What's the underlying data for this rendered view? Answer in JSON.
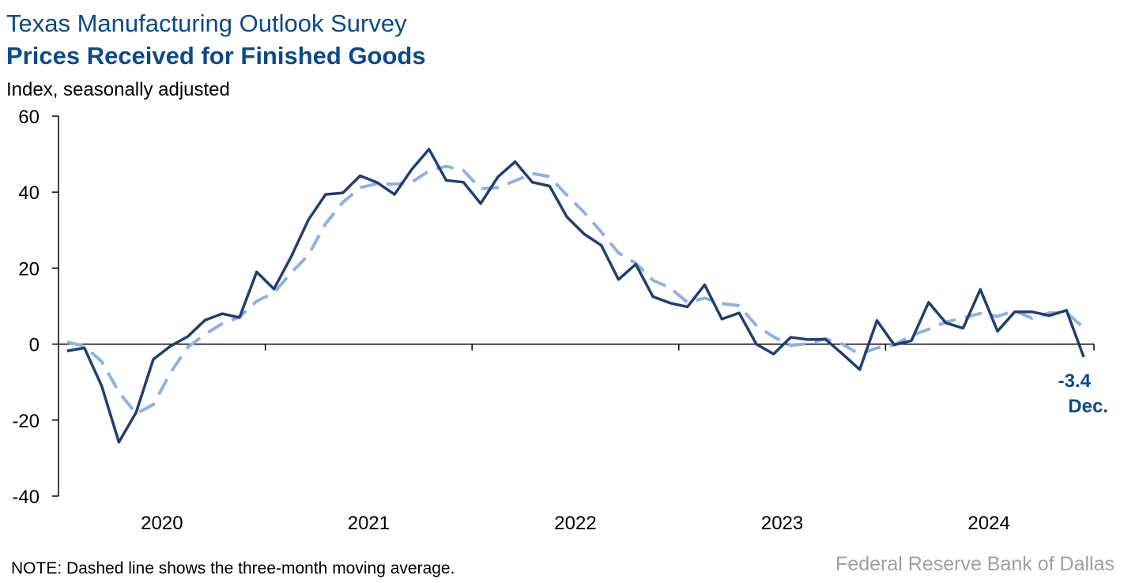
{
  "chart_data": {
    "type": "line",
    "title": "Texas Manufacturing Outlook Survey",
    "subtitle": "Prices Received for Finished Goods",
    "y_label": "Index, seasonally adjusted",
    "categories": [
      null,
      null,
      null,
      null,
      null,
      "2020",
      null,
      null,
      null,
      null,
      null,
      null,
      null,
      null,
      null,
      null,
      null,
      "2021",
      null,
      null,
      null,
      null,
      null,
      null,
      null,
      null,
      null,
      null,
      null,
      "2022",
      null,
      null,
      null,
      null,
      null,
      null,
      null,
      null,
      null,
      null,
      null,
      "2023",
      null,
      null,
      null,
      null,
      null,
      null,
      null,
      null,
      null,
      null,
      null,
      "2024",
      null,
      null,
      null,
      null,
      null,
      null
    ],
    "series": [
      {
        "color": "#1f3f73",
        "dash": false,
        "values": [
          -1.8,
          -1,
          -11,
          -25.8,
          -18,
          -4,
          -0.5,
          2,
          6.3,
          8,
          7,
          19,
          14.5,
          23,
          32.7,
          39.4,
          39.8,
          44.3,
          42.5,
          39.4,
          46,
          51.3,
          43.1,
          42.6,
          37,
          44,
          48,
          42.6,
          41.6,
          33.5,
          29,
          26,
          17,
          21,
          12.5,
          10.8,
          9.8,
          15.6,
          6.6,
          8.2,
          0,
          -2.6,
          1.8,
          1.2,
          1.3,
          -2.6,
          -6.7,
          6.2,
          -0.2,
          0.9,
          11,
          5.6,
          4.2,
          14.4,
          3.4,
          8.5,
          8.5,
          7.5,
          8.9,
          -3.4
        ]
      },
      {
        "color": "#8fb1e3",
        "dash": true,
        "values": [
          0.5,
          -0.5,
          -4.6,
          -12.6,
          -18.3,
          -15.9,
          -7.5,
          -0.8,
          2.6,
          5.4,
          7.1,
          11.3,
          13.5,
          18.8,
          23.4,
          31.7,
          37.3,
          41.2,
          42.2,
          42.1,
          42.6,
          45.6,
          46.8,
          45.7,
          40.9,
          41.2,
          43,
          44.9,
          44.1,
          39.2,
          34.7,
          29.5,
          24,
          21.3,
          16.8,
          14.8,
          11,
          12.1,
          10.7,
          10.1,
          4.9,
          1.9,
          -0.3,
          0.1,
          1.4,
          0,
          -2.7,
          -1,
          -0.2,
          2.3,
          3.9,
          5.8,
          6.9,
          8.1,
          7.3,
          8.8,
          6.8,
          8.2,
          8.3,
          4.3
        ]
      }
    ],
    "ylim": [
      -40,
      60
    ],
    "yticks": [
      -40,
      -20,
      0,
      20,
      40,
      60
    ],
    "annotation": "Dec.",
    "note": "NOTE: Dashed line shows the three-month moving average.",
    "source": "Federal Reserve Bank of Dallas"
  }
}
